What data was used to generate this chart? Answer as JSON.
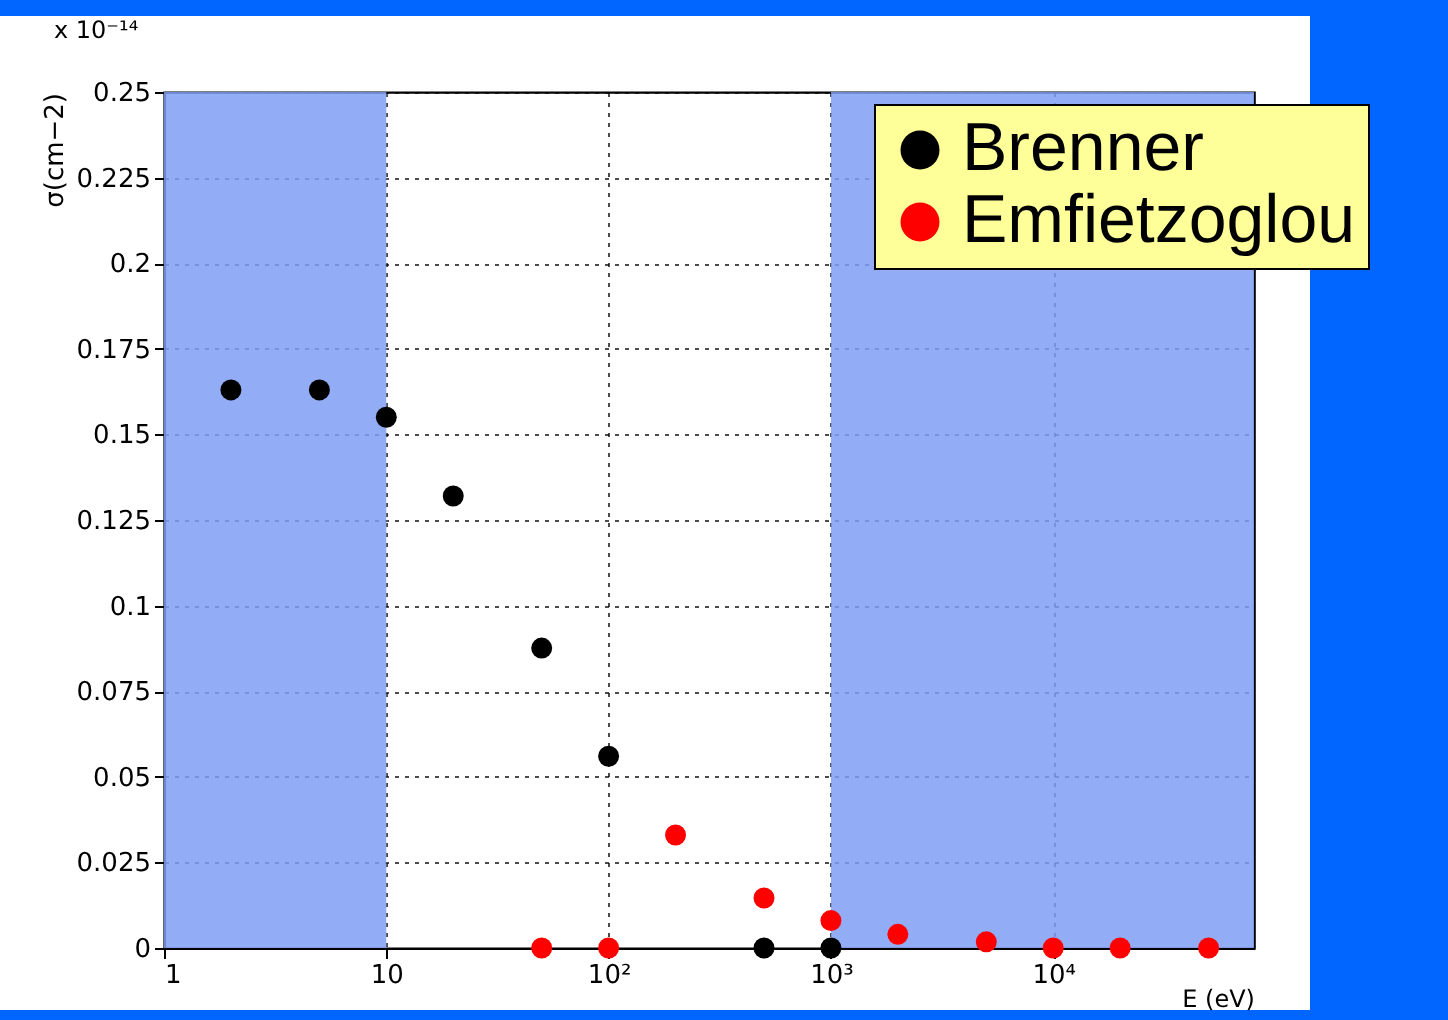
{
  "chart_data": {
    "type": "scatter",
    "xlabel": "E (eV)",
    "ylabel": "σ(cm−2)",
    "annotations": [
      "x 10⁻¹⁴"
    ],
    "x": [
      2,
      5,
      10,
      20,
      50,
      100,
      500,
      1000
    ],
    "series": [
      {
        "name": "Brenner",
        "color": "#000000",
        "values": [
          0.163,
          0.163,
          0.155,
          0.132,
          0.0876,
          0.056,
          0,
          0
        ]
      },
      {
        "name": "Emfietzoglou",
        "color": "#ff0000",
        "x": [
          50,
          100,
          200,
          500,
          1000,
          2000,
          5000,
          10000,
          20000,
          50000
        ],
        "values": [
          0,
          0,
          0.033,
          0.0146,
          0.008,
          0.004,
          0.0018,
          0,
          0,
          0
        ]
      }
    ],
    "log": "x",
    "xlim": [
      1,
      80000
    ],
    "xticks": [
      1,
      10,
      {
        "value": 100,
        "label": "10²"
      },
      {
        "value": 1000,
        "label": "10³"
      },
      {
        "value": 10000,
        "label": "10⁴"
      }
    ],
    "ylim": [
      0,
      0.25
    ],
    "yticks": [
      0,
      0.025,
      0.05,
      0.075,
      0.1,
      0.125,
      0.15,
      0.175,
      0.2,
      0.225,
      0.25
    ],
    "bands": [
      {
        "axis": "x",
        "from": 1,
        "to": 10,
        "color": "#7f9ff5"
      },
      {
        "axis": "x",
        "from": 1000,
        "to": 80000,
        "color": "#7f9ff5"
      }
    ],
    "grid": true,
    "legend": "top right",
    "marker": "circle"
  }
}
